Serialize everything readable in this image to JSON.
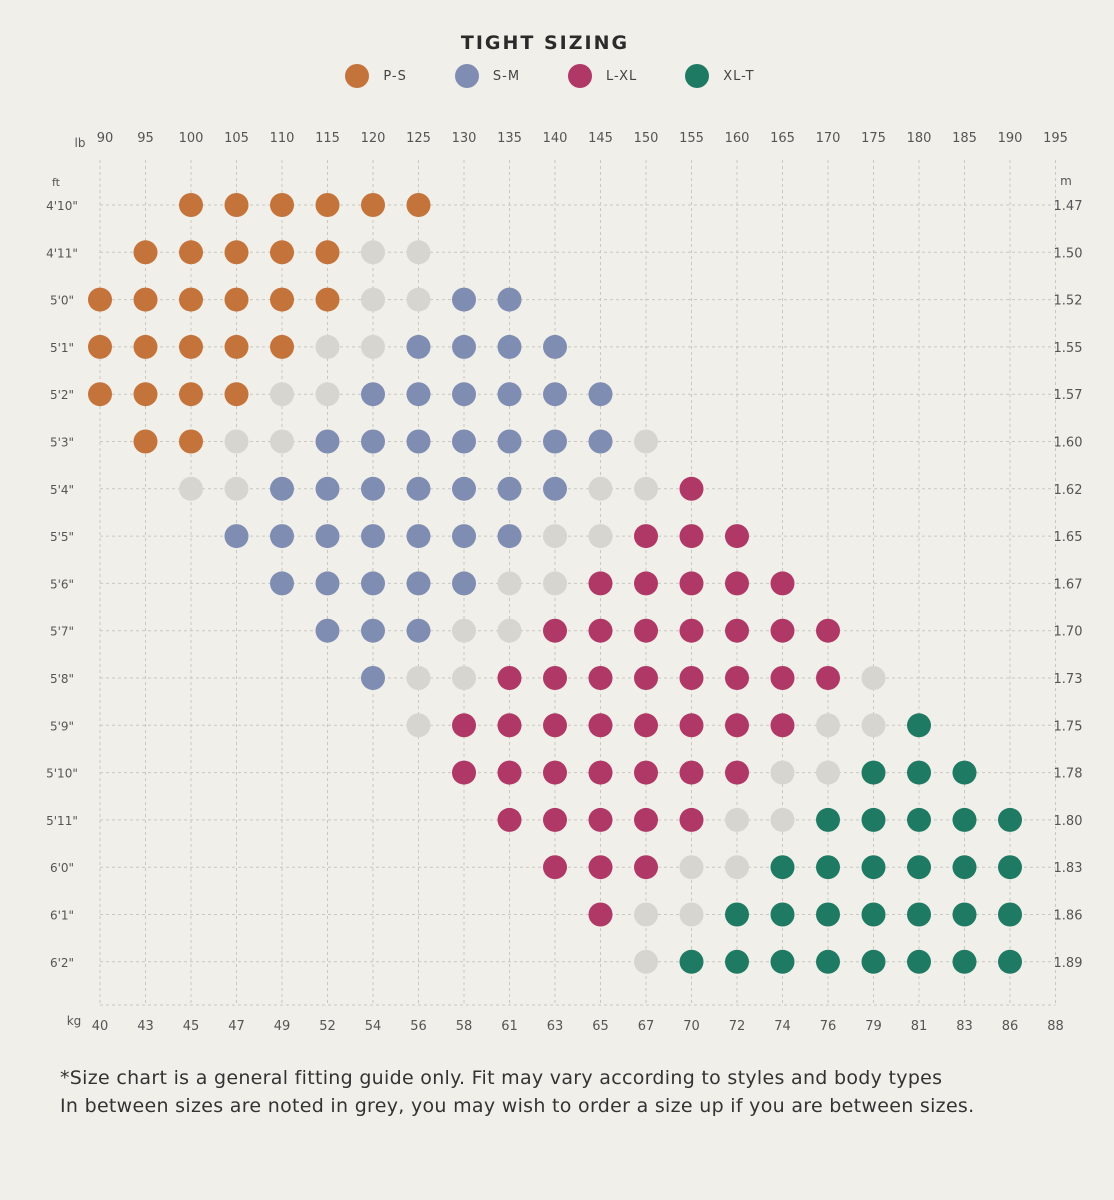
{
  "chart_data": {
    "type": "scatter",
    "title": "TIGHT SIZING",
    "legend": [
      {
        "key": "P",
        "label": "P-S",
        "color": "#c4733b"
      },
      {
        "key": "S",
        "label": "S-M",
        "color": "#7f8db3"
      },
      {
        "key": "L",
        "label": "L-XL",
        "color": "#b03867"
      },
      {
        "key": "X",
        "label": "XL-T",
        "color": "#1f7a63"
      }
    ],
    "between_sizes_color": "#d7d5d0",
    "x_top_unit": "lb",
    "x_top_ticks": [
      "90",
      "95",
      "100",
      "105",
      "110",
      "115",
      "120",
      "125",
      "130",
      "135",
      "140",
      "145",
      "150",
      "155",
      "160",
      "165",
      "170",
      "175",
      "180",
      "185",
      "190",
      "195"
    ],
    "x_bottom_unit": "kg",
    "x_bottom_ticks": [
      "40",
      "43",
      "45",
      "47",
      "49",
      "52",
      "54",
      "56",
      "58",
      "61",
      "63",
      "65",
      "67",
      "70",
      "72",
      "74",
      "76",
      "79",
      "81",
      "83",
      "86",
      "88"
    ],
    "y_left_unit": "ft",
    "y_left_ticks": [
      "4'10\"",
      "4'11\"",
      "5'0\"",
      "5'1\"",
      "5'2\"",
      "5'3\"",
      "5'4\"",
      "5'5\"",
      "5'6\"",
      "5'7\"",
      "5'8\"",
      "5'9\"",
      "5'10\"",
      "5'11\"",
      "6'0\"",
      "6'1\"",
      "6'2\""
    ],
    "y_right_unit": "m",
    "y_right_ticks": [
      "1.47",
      "1.50",
      "1.52",
      "1.55",
      "1.57",
      "1.60",
      "1.62",
      "1.65",
      "1.67",
      "1.70",
      "1.73",
      "1.75",
      "1.78",
      "1.80",
      "1.83",
      "1.86",
      "1.89"
    ],
    "grid": true,
    "rows": [
      {
        "height": "4'10\"",
        "cells": "--PPPPPP-------------"
      },
      {
        "height": "4'11\"",
        "cells": "-PPPPPGG-------------"
      },
      {
        "height": "5'0\"",
        "cells": "PPPPPPGGSS-----------"
      },
      {
        "height": "5'1\"",
        "cells": "PPPPPGGSSSS----------"
      },
      {
        "height": "5'2\"",
        "cells": "PPPPGGSSSSSS---------"
      },
      {
        "height": "5'3\"",
        "cells": "-PPGGSSSSSSSG--------"
      },
      {
        "height": "5'4\"",
        "cells": "--GGSSSSSSSGGL-------"
      },
      {
        "height": "5'5\"",
        "cells": "---SSSSSSSGGLLL------"
      },
      {
        "height": "5'6\"",
        "cells": "----SSSSSGGLLLLL-----"
      },
      {
        "height": "5'7\"",
        "cells": "-----SSSGGLLLLLLL----"
      },
      {
        "height": "5'8\"",
        "cells": "------SGGLLLLLLLLG---"
      },
      {
        "height": "5'9\"",
        "cells": "-------GLLLLLLLLGGX--"
      },
      {
        "height": "5'10\"",
        "cells": "--------LLLLLLLGGXXX-"
      },
      {
        "height": "5'11\"",
        "cells": "---------LLLLLGGXXXXX"
      },
      {
        "height": "6'0\"",
        "cells": "----------LLLGGXXXXXX"
      },
      {
        "height": "6'1\"",
        "cells": "-----------LGGXXXXXXX"
      },
      {
        "height": "6'2\"",
        "cells": "------------GXXXXXXXX"
      }
    ]
  },
  "footnote": {
    "line1": "*Size chart is a general fitting guide only. Fit may vary according to styles and body types",
    "line2": "In between sizes are noted in grey, you may wish to order a size up if you are between sizes."
  }
}
